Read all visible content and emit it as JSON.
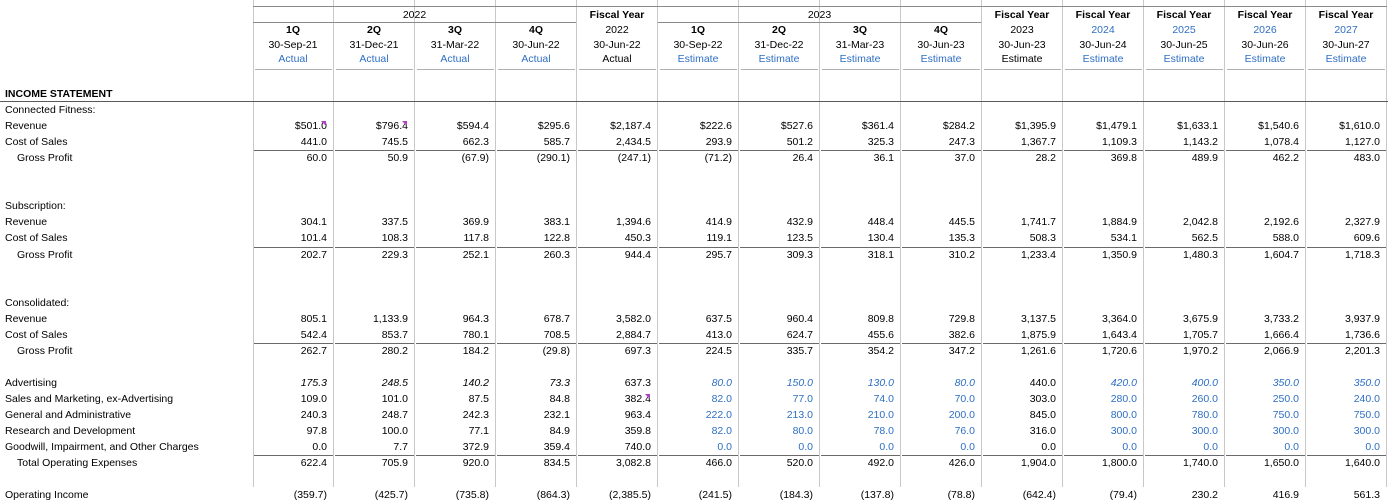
{
  "header": {
    "year_groups": [
      "2022",
      "2023"
    ],
    "columns": [
      {
        "q": "1Q",
        "date": "30-Sep-21",
        "status": "Actual",
        "blue": true
      },
      {
        "q": "2Q",
        "date": "31-Dec-21",
        "status": "Actual",
        "blue": true
      },
      {
        "q": "3Q",
        "date": "31-Mar-22",
        "status": "Actual",
        "blue": true
      },
      {
        "q": "4Q",
        "date": "30-Jun-22",
        "status": "Actual",
        "blue": true
      },
      {
        "fy": "Fiscal Year",
        "q": "2022",
        "date": "30-Jun-22",
        "status": "Actual",
        "blue": false
      },
      {
        "q": "1Q",
        "date": "30-Sep-22",
        "status": "Estimate",
        "blue": true
      },
      {
        "q": "2Q",
        "date": "31-Dec-22",
        "status": "Estimate",
        "blue": true
      },
      {
        "q": "3Q",
        "date": "31-Mar-23",
        "status": "Estimate",
        "blue": true
      },
      {
        "q": "4Q",
        "date": "30-Jun-23",
        "status": "Estimate",
        "blue": true
      },
      {
        "fy": "Fiscal Year",
        "q": "2023",
        "date": "30-Jun-23",
        "status": "Estimate",
        "blue": false
      },
      {
        "fy": "Fiscal Year",
        "q": "2024",
        "date": "30-Jun-24",
        "status": "Estimate",
        "blue": true
      },
      {
        "fy": "Fiscal Year",
        "q": "2025",
        "date": "30-Jun-25",
        "status": "Estimate",
        "blue": true
      },
      {
        "fy": "Fiscal Year",
        "q": "2026",
        "date": "30-Jun-26",
        "status": "Estimate",
        "blue": true
      },
      {
        "fy": "Fiscal Year",
        "q": "2027",
        "date": "30-Jun-27",
        "status": "Estimate",
        "blue": true
      }
    ]
  },
  "rows": [
    {
      "label": "INCOME STATEMENT",
      "bold": true,
      "section": true
    },
    {
      "label": "Connected Fitness:"
    },
    {
      "label": "Revenue",
      "values": [
        "$501.0",
        "$796.4",
        "$594.4",
        "$295.6",
        "$2,187.4",
        "$222.6",
        "$527.6",
        "$361.4",
        "$284.2",
        "$1,395.9",
        "$1,479.1",
        "$1,633.1",
        "$1,540.6",
        "$1,610.0"
      ],
      "flags": [
        0,
        1
      ]
    },
    {
      "label": "Cost of Sales",
      "values": [
        "441.0",
        "745.5",
        "662.3",
        "585.7",
        "2,434.5",
        "293.9",
        "501.2",
        "325.3",
        "247.3",
        "1,367.7",
        "1,109.3",
        "1,143.2",
        "1,078.4",
        "1,127.0"
      ]
    },
    {
      "label": "Gross Profit",
      "indent": true,
      "values": [
        "60.0",
        "50.9",
        "(67.9)",
        "(290.1)",
        "(247.1)",
        "(71.2)",
        "26.4",
        "36.1",
        "37.0",
        "28.2",
        "369.8",
        "489.9",
        "462.2",
        "483.0"
      ]
    },
    {
      "label": ""
    },
    {
      "label": ""
    },
    {
      "label": "Subscription:"
    },
    {
      "label": "Revenue",
      "values": [
        "304.1",
        "337.5",
        "369.9",
        "383.1",
        "1,394.6",
        "414.9",
        "432.9",
        "448.4",
        "445.5",
        "1,741.7",
        "1,884.9",
        "2,042.8",
        "2,192.6",
        "2,327.9"
      ]
    },
    {
      "label": "Cost of Sales",
      "values": [
        "101.4",
        "108.3",
        "117.8",
        "122.8",
        "450.3",
        "119.1",
        "123.5",
        "130.4",
        "135.3",
        "508.3",
        "534.1",
        "562.5",
        "588.0",
        "609.6"
      ]
    },
    {
      "label": "Gross Profit",
      "indent": true,
      "values": [
        "202.7",
        "229.3",
        "252.1",
        "260.3",
        "944.4",
        "295.7",
        "309.3",
        "318.1",
        "310.2",
        "1,233.4",
        "1,350.9",
        "1,480.3",
        "1,604.7",
        "1,718.3"
      ]
    },
    {
      "label": ""
    },
    {
      "label": ""
    },
    {
      "label": "Consolidated:"
    },
    {
      "label": "Revenue",
      "values": [
        "805.1",
        "1,133.9",
        "964.3",
        "678.7",
        "3,582.0",
        "637.5",
        "960.4",
        "809.8",
        "729.8",
        "3,137.5",
        "3,364.0",
        "3,675.9",
        "3,733.2",
        "3,937.9"
      ]
    },
    {
      "label": "Cost of Sales",
      "values": [
        "542.4",
        "853.7",
        "780.1",
        "708.5",
        "2,884.7",
        "413.0",
        "624.7",
        "455.6",
        "382.6",
        "1,875.9",
        "1,643.4",
        "1,705.7",
        "1,666.4",
        "1,736.6"
      ]
    },
    {
      "label": "Gross Profit",
      "indent": true,
      "values": [
        "262.7",
        "280.2",
        "184.2",
        "(29.8)",
        "697.3",
        "224.5",
        "335.7",
        "354.2",
        "347.2",
        "1,261.6",
        "1,720.6",
        "1,970.2",
        "2,066.9",
        "2,201.3"
      ]
    },
    {
      "label": ""
    },
    {
      "label": "Advertising",
      "values": [
        "175.3",
        "248.5",
        "140.2",
        "73.3",
        "637.3",
        "80.0",
        "150.0",
        "130.0",
        "80.0",
        "440.0",
        "420.0",
        "400.0",
        "350.0",
        "350.0"
      ],
      "italic": [
        0,
        1,
        2,
        3,
        5,
        6,
        7,
        8,
        10,
        11,
        12,
        13
      ],
      "blue": [
        5,
        6,
        7,
        8,
        10,
        11,
        12,
        13
      ]
    },
    {
      "label": "Sales and Marketing, ex-Advertising",
      "values": [
        "109.0",
        "101.0",
        "87.5",
        "84.8",
        "382.4",
        "82.0",
        "77.0",
        "74.0",
        "70.0",
        "303.0",
        "280.0",
        "260.0",
        "250.0",
        "240.0"
      ],
      "blue": [
        5,
        6,
        7,
        8,
        10,
        11,
        12,
        13
      ],
      "flags": [
        4
      ]
    },
    {
      "label": "General and Administrative",
      "values": [
        "240.3",
        "248.7",
        "242.3",
        "232.1",
        "963.4",
        "222.0",
        "213.0",
        "210.0",
        "200.0",
        "845.0",
        "800.0",
        "780.0",
        "750.0",
        "750.0"
      ],
      "blue": [
        5,
        6,
        7,
        8,
        10,
        11,
        12,
        13
      ]
    },
    {
      "label": "Research and Development",
      "values": [
        "97.8",
        "100.0",
        "77.1",
        "84.9",
        "359.8",
        "82.0",
        "80.0",
        "78.0",
        "76.0",
        "316.0",
        "300.0",
        "300.0",
        "300.0",
        "300.0"
      ],
      "blue": [
        5,
        6,
        7,
        8,
        10,
        11,
        12,
        13
      ]
    },
    {
      "label": "Goodwill, Impairment, and Other Charges",
      "values": [
        "0.0",
        "7.7",
        "372.9",
        "359.4",
        "740.0",
        "0.0",
        "0.0",
        "0.0",
        "0.0",
        "0.0",
        "0.0",
        "0.0",
        "0.0",
        "0.0"
      ],
      "blue": [
        5,
        6,
        7,
        8,
        10,
        11,
        12,
        13
      ]
    },
    {
      "label": "Total Operating Expenses",
      "indent": true,
      "values": [
        "622.4",
        "705.9",
        "920.0",
        "834.5",
        "3,082.8",
        "466.0",
        "520.0",
        "492.0",
        "426.0",
        "1,904.0",
        "1,800.0",
        "1,740.0",
        "1,650.0",
        "1,640.0"
      ]
    },
    {
      "label": ""
    },
    {
      "label": "Operating Income",
      "values": [
        "(359.7)",
        "(425.7)",
        "(735.8)",
        "(864.3)",
        "(2,385.5)",
        "(241.5)",
        "(184.3)",
        "(137.8)",
        "(78.8)",
        "(642.4)",
        "(79.4)",
        "230.2",
        "416.9",
        "561.3"
      ]
    }
  ]
}
